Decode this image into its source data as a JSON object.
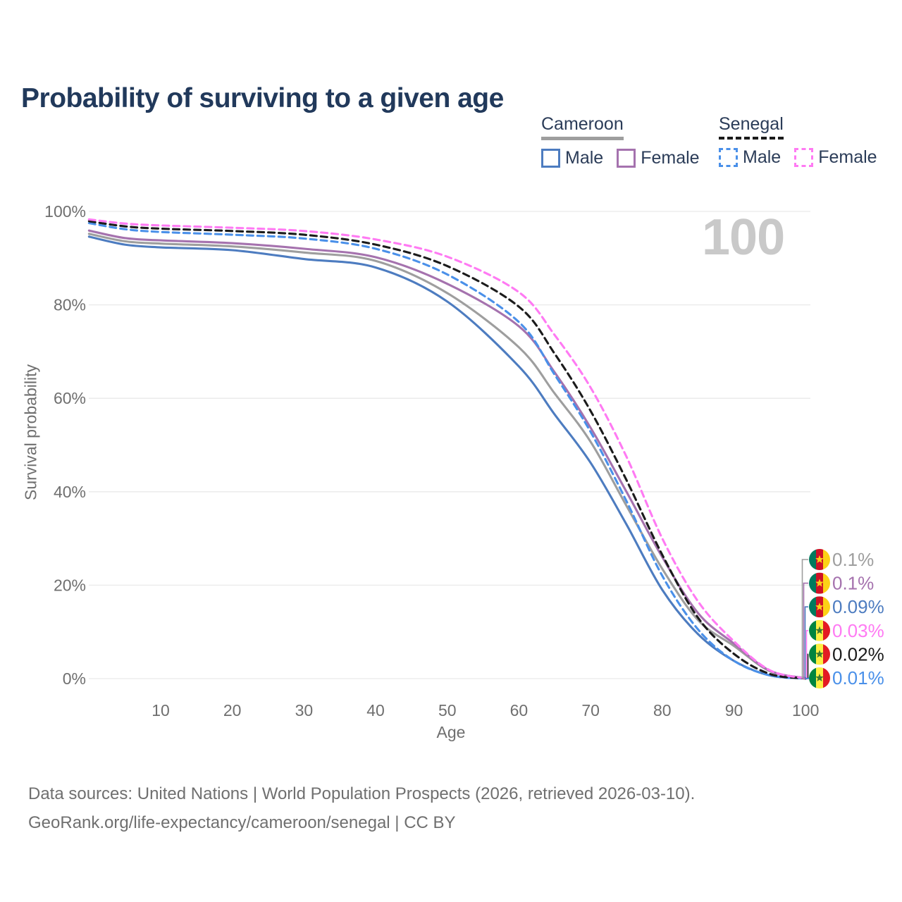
{
  "title": "Probability of surviving to a given age",
  "watermark": "100",
  "legend": {
    "groups": [
      {
        "label": "Cameroon",
        "line_style": "solid",
        "underline_color": "#9e9e9e",
        "items": [
          {
            "label": "Male",
            "color": "#4d7cc0"
          },
          {
            "label": "Female",
            "color": "#a572ae"
          }
        ]
      },
      {
        "label": "Senegal",
        "line_style": "dashed",
        "underline_color": "#1b1b1b",
        "items": [
          {
            "label": "Male",
            "color": "#4a90e9"
          },
          {
            "label": "Female",
            "color": "#ff7af3"
          }
        ]
      }
    ]
  },
  "chart_data": {
    "type": "line",
    "title": "Probability of surviving to a given age",
    "xlabel": "Age",
    "ylabel": "Survival probability",
    "xlim": [
      0,
      110
    ],
    "ylim": [
      0,
      100
    ],
    "grid": true,
    "legend_position": "top-right",
    "x_ticks": [
      10,
      20,
      30,
      40,
      50,
      60,
      70,
      80,
      90,
      100
    ],
    "y_ticks": [
      {
        "value": 0,
        "label": "0%"
      },
      {
        "value": 20,
        "label": "20%"
      },
      {
        "value": 40,
        "label": "40%"
      },
      {
        "value": 60,
        "label": "60%"
      },
      {
        "value": 80,
        "label": "80%"
      },
      {
        "value": 100,
        "label": "100%"
      }
    ],
    "x": [
      0,
      5,
      10,
      20,
      30,
      40,
      50,
      60,
      65,
      70,
      75,
      80,
      85,
      90,
      95,
      100
    ],
    "series": [
      {
        "name": "Cameroon Both sexes",
        "country": "Cameroon",
        "sex": "Both",
        "style": "solid",
        "color": "#9e9e9e",
        "values": [
          95.2,
          93.6,
          93.1,
          92.5,
          91.2,
          89.4,
          82.5,
          70.9,
          61.0,
          50.7,
          37.0,
          23.5,
          12.5,
          7.0,
          1.6,
          0.1
        ],
        "end_label": "0.1%"
      },
      {
        "name": "Cameroon Male",
        "country": "Cameroon",
        "sex": "Male",
        "style": "solid",
        "color": "#4d7cc0",
        "values": [
          94.6,
          92.9,
          92.3,
          91.7,
          89.8,
          88.0,
          80.7,
          66.8,
          56.5,
          46.2,
          33.0,
          19.0,
          9.5,
          3.8,
          0.7,
          0.09
        ],
        "end_label": "0.09%"
      },
      {
        "name": "Cameroon Female",
        "country": "Cameroon",
        "sex": "Female",
        "style": "solid",
        "color": "#a572ae",
        "values": [
          95.9,
          94.3,
          93.8,
          93.2,
          92.0,
          90.2,
          84.5,
          75.4,
          65.5,
          53.7,
          40.0,
          26.0,
          14.0,
          7.5,
          1.7,
          0.1
        ],
        "end_label": "0.1%"
      },
      {
        "name": "Senegal Male",
        "country": "Senegal",
        "sex": "Male",
        "style": "dashed",
        "color": "#4a90e9",
        "values": [
          97.5,
          96.2,
          95.6,
          95.0,
          94.2,
          92.0,
          86.5,
          76.3,
          65.0,
          52.8,
          38.0,
          22.0,
          10.5,
          3.8,
          0.7,
          0.01
        ],
        "end_label": "0.01%"
      },
      {
        "name": "Senegal Both sexes",
        "country": "Senegal",
        "sex": "Both",
        "style": "dashed",
        "color": "#1b1b1b",
        "values": [
          97.9,
          96.8,
          96.3,
          95.8,
          95.0,
          92.9,
          88.3,
          79.6,
          69.5,
          57.3,
          42.5,
          26.5,
          13.0,
          5.3,
          1.0,
          0.02
        ],
        "end_label": "0.02%"
      },
      {
        "name": "Senegal Female",
        "country": "Senegal",
        "sex": "Female",
        "style": "dashed",
        "color": "#ff7af3",
        "values": [
          98.3,
          97.4,
          97.0,
          96.5,
          95.8,
          94.0,
          90.3,
          82.7,
          73.5,
          62.3,
          47.5,
          30.0,
          16.5,
          8.0,
          1.8,
          0.03
        ],
        "end_label": "0.03%"
      }
    ]
  },
  "badges": [
    {
      "flag": "cameroon",
      "label": "0.1%",
      "color": "#9e9e9e",
      "end_value": 0.1
    },
    {
      "flag": "cameroon",
      "label": "0.1%",
      "color": "#a572ae",
      "end_value": 0.1
    },
    {
      "flag": "cameroon",
      "label": "0.09%",
      "color": "#4d7cc0",
      "end_value": 0.09
    },
    {
      "flag": "senegal",
      "label": "0.03%",
      "color": "#ff7af3",
      "end_value": 0.03
    },
    {
      "flag": "senegal",
      "label": "0.02%",
      "color": "#1b1b1b",
      "end_value": 0.02
    },
    {
      "flag": "senegal",
      "label": "0.01%",
      "color": "#4a90e9",
      "end_value": 0.01
    }
  ],
  "flags": {
    "cameroon": {
      "stripes": [
        "#007a5e",
        "#ce1126",
        "#fcd116"
      ],
      "star_color": "#fcd116"
    },
    "senegal": {
      "stripes": [
        "#00853f",
        "#fdef42",
        "#e31b23"
      ],
      "star_color": "#3d7a2e"
    }
  },
  "footer": {
    "line1": "Data sources: United Nations | World Population Prospects (2026, retrieved 2026-03-10).",
    "line2": "GeoRank.org/life-expectancy/cameroon/senegal | CC BY"
  }
}
